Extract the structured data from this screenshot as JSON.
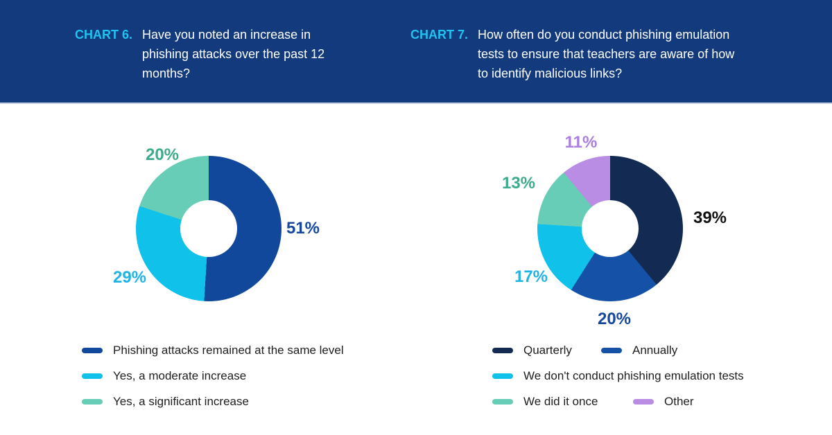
{
  "header": {
    "bg_color": "#123a7d",
    "tag_color": "#20c3f0",
    "charts": [
      {
        "tag": "CHART 6.",
        "question": "Have you noted an increase in phishing attacks over the past 12 months?"
      },
      {
        "tag": "CHART 7.",
        "question": "How often do you conduct phishing emulation tests to ensure that teachers are aware of how to identify malicious links?"
      }
    ]
  },
  "chart_data": [
    {
      "type": "pie",
      "subtype": "donut",
      "title": "Have you noted an increase in phishing attacks over the past 12 months?",
      "start_angle_deg": 0,
      "direction": "clockwise",
      "legend_position": "bottom-left",
      "slices": [
        {
          "label": "Phishing attacks remained at the same level",
          "value": 51,
          "display": "51%",
          "color": "#11489c",
          "label_color": "#15489b"
        },
        {
          "label": "Yes, a moderate increase",
          "value": 29,
          "display": "29%",
          "color": "#10c1ea",
          "label_color": "#1fb4e5"
        },
        {
          "label": "Yes, a significant increase",
          "value": 20,
          "display": "20%",
          "color": "#67cdb6",
          "label_color": "#3caa8c"
        }
      ]
    },
    {
      "type": "pie",
      "subtype": "donut",
      "title": "How often do you conduct phishing emulation tests to ensure that teachers are aware of how to identify malicious links?",
      "start_angle_deg": 0,
      "direction": "clockwise",
      "legend_position": "bottom-left",
      "slices": [
        {
          "label": "Quarterly",
          "value": 39,
          "display": "39%",
          "color": "#132b52",
          "label_color": "#101010"
        },
        {
          "label": "Annually",
          "value": 20,
          "display": "20%",
          "color": "#1551a7",
          "label_color": "#15489b"
        },
        {
          "label": "We don't conduct phishing emulation tests",
          "value": 17,
          "display": "17%",
          "color": "#10c1ea",
          "label_color": "#1fb4e5"
        },
        {
          "label": "We did it once",
          "value": 13,
          "display": "13%",
          "color": "#67cdb6",
          "label_color": "#3caa8c"
        },
        {
          "label": "Other",
          "value": 11,
          "display": "11%",
          "color": "#b88de3",
          "label_color": "#a97fe0"
        }
      ]
    }
  ]
}
